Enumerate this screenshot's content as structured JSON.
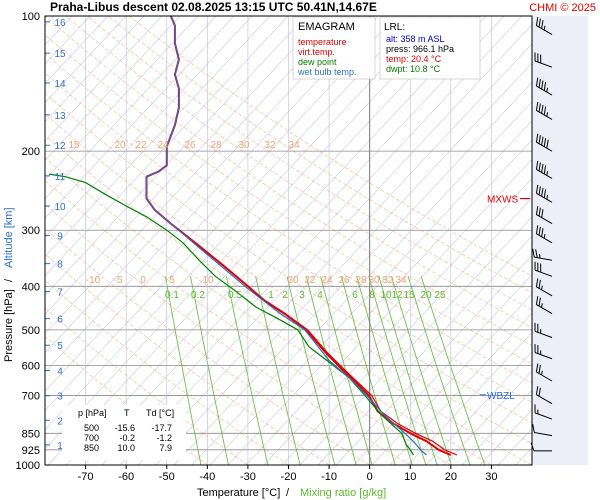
{
  "header": {
    "title": "Praha-Libus   descent   02.08.2025 13:15 UTC  50.41N,14.67E",
    "copyright": "CHMI © 2025"
  },
  "chart_data": {
    "type": "line",
    "chart_kind": "emagram",
    "title": "EMAGRAM",
    "xlabel": "Temperature [°C]",
    "xlabel_sep": "/",
    "xlabel2": "Mixing ratio [g/kg]",
    "ylabel": "Pressure [hPa]",
    "ylabel_sep": "/",
    "ylabel2": "Altitude [km]",
    "x_range": [
      -80,
      40
    ],
    "y_range_hpa": [
      1000,
      100
    ],
    "y_scale": "log",
    "x_ticks": [
      -70,
      -60,
      -50,
      -40,
      -30,
      -20,
      -10,
      0,
      10,
      20,
      30
    ],
    "pressure_ticks": [
      100,
      200,
      300,
      400,
      500,
      600,
      700,
      850,
      925,
      1000
    ],
    "altitude_ticks": [
      {
        "label": "1",
        "p": 902
      },
      {
        "label": "2",
        "p": 795
      },
      {
        "label": "3",
        "p": 701
      },
      {
        "label": "4",
        "p": 616
      },
      {
        "label": "5",
        "p": 541
      },
      {
        "label": "6",
        "p": 472
      },
      {
        "label": "7",
        "p": 411
      },
      {
        "label": "8",
        "p": 356
      },
      {
        "label": "9",
        "p": 308
      },
      {
        "label": "10",
        "p": 265
      },
      {
        "label": "11",
        "p": 227
      },
      {
        "label": "12",
        "p": 194
      },
      {
        "label": "13",
        "p": 166
      },
      {
        "label": "14",
        "p": 141
      },
      {
        "label": "15",
        "p": 121
      },
      {
        "label": "16",
        "p": 103
      }
    ],
    "legend": [
      {
        "label": "temperature",
        "color": "#e00000"
      },
      {
        "label": "virt.temp.",
        "color": "#e00000"
      },
      {
        "label": "dew point",
        "color": "#008000"
      },
      {
        "label": "wet bulb temp.",
        "color": "#2a6fd0"
      }
    ],
    "lrl": {
      "title": "LRL:",
      "lines": [
        {
          "text": "alt: 358 m ASL",
          "color": "#0000c0"
        },
        {
          "text": "press: 966.1 hPa",
          "color": "#000000"
        },
        {
          "text": "temp: 20.4 °C",
          "color": "#e00000"
        },
        {
          "text": "dwpt: 10.8 °C",
          "color": "#008000"
        }
      ]
    },
    "stats_table": {
      "header": [
        "p [hPa]",
        "T",
        "Td [°C]"
      ],
      "rows": [
        [
          "500",
          "-15.6",
          "-17.7"
        ],
        [
          "700",
          "-0.2",
          "-1.2"
        ],
        [
          "850",
          "10.0",
          "7.9"
        ]
      ]
    },
    "mixing_ratio_labels": [
      "0.1",
      "0.2",
      "0.5",
      "1",
      "2",
      "3",
      "4",
      "6",
      "8",
      "10",
      "12",
      "15",
      "20",
      "25"
    ],
    "mixing_ratio_values": [
      0.1,
      0.2,
      0.5,
      1,
      2,
      3,
      4,
      6,
      8,
      10,
      12,
      15,
      20,
      25
    ],
    "theta_labels_low": [
      "-10",
      "-5",
      "0",
      "5",
      "10",
      "20",
      "22",
      "24",
      "26",
      "28",
      "30",
      "32",
      "34"
    ],
    "theta_labels_high": [
      "15",
      "20",
      "22",
      "24",
      "26",
      "28",
      "30",
      "32",
      "34"
    ],
    "levels": [
      {
        "label": "MXWS",
        "p": 255,
        "color": "#e00000"
      },
      {
        "label": "WBZL",
        "p": 705,
        "color": "#2a6fd0"
      }
    ],
    "series": [
      {
        "name": "temperature",
        "color": "#e00000",
        "points": [
          [
            20,
            950
          ],
          [
            17,
            925
          ],
          [
            14,
            885
          ],
          [
            10,
            850
          ],
          [
            6,
            810
          ],
          [
            2,
            760
          ],
          [
            -0.2,
            700
          ],
          [
            -3,
            660
          ],
          [
            -7,
            610
          ],
          [
            -11,
            560
          ],
          [
            -15.6,
            500
          ],
          [
            -21,
            460
          ],
          [
            -26,
            430
          ],
          [
            -30,
            400
          ],
          [
            -36,
            360
          ],
          [
            -43,
            320
          ],
          [
            -49,
            290
          ],
          [
            -53,
            270
          ],
          [
            -55,
            255
          ],
          [
            -55,
            240
          ],
          [
            -55,
            228
          ],
          [
            -52,
            222
          ],
          [
            -50,
            215
          ],
          [
            -50,
            205
          ],
          [
            -50,
            195
          ],
          [
            -49,
            185
          ],
          [
            -48,
            175
          ],
          [
            -47,
            160
          ],
          [
            -47,
            145
          ],
          [
            -48,
            135
          ],
          [
            -47,
            125
          ],
          [
            -48,
            115
          ],
          [
            -48,
            105
          ],
          [
            -49,
            100
          ]
        ]
      },
      {
        "name": "virt.temp.",
        "color": "#e00000",
        "points": [
          [
            21.5,
            950
          ],
          [
            18.5,
            925
          ],
          [
            15.5,
            885
          ],
          [
            11.3,
            850
          ],
          [
            7,
            810
          ],
          [
            2.8,
            760
          ],
          [
            0.5,
            700
          ],
          [
            -2.5,
            660
          ],
          [
            -6.5,
            610
          ],
          [
            -10.6,
            560
          ],
          [
            -15.3,
            500
          ],
          [
            -20.8,
            460
          ],
          [
            -25.8,
            430
          ],
          [
            -29.9,
            400
          ],
          [
            -35.9,
            360
          ],
          [
            -42.9,
            320
          ],
          [
            -49,
            290
          ],
          [
            -53,
            270
          ],
          [
            -55,
            255
          ],
          [
            -55,
            240
          ],
          [
            -55,
            228
          ],
          [
            -52,
            222
          ],
          [
            -50,
            215
          ],
          [
            -50,
            205
          ],
          [
            -50,
            195
          ],
          [
            -49,
            185
          ],
          [
            -48,
            175
          ],
          [
            -47,
            160
          ],
          [
            -47,
            145
          ],
          [
            -48,
            135
          ],
          [
            -47,
            125
          ],
          [
            -48,
            115
          ],
          [
            -48,
            105
          ],
          [
            -49,
            100
          ]
        ]
      },
      {
        "name": "dew point",
        "color": "#008000",
        "points": [
          [
            10.8,
            950
          ],
          [
            10,
            925
          ],
          [
            9,
            900
          ],
          [
            7.9,
            850
          ],
          [
            3,
            775
          ],
          [
            -1.2,
            700
          ],
          [
            -5,
            640
          ],
          [
            -10,
            590
          ],
          [
            -15,
            545
          ],
          [
            -17.7,
            500
          ],
          [
            -23,
            470
          ],
          [
            -28,
            445
          ],
          [
            -33,
            410
          ],
          [
            -38,
            380
          ],
          [
            -42,
            350
          ],
          [
            -46,
            320
          ],
          [
            -50,
            300
          ],
          [
            -55,
            280
          ],
          [
            -60,
            265
          ],
          [
            -65,
            250
          ],
          [
            -70,
            235
          ],
          [
            -75,
            228
          ],
          [
            -79,
            225
          ]
        ]
      },
      {
        "name": "wet bulb temp.",
        "color": "#2a6fd0",
        "points": [
          [
            14,
            950
          ],
          [
            12.5,
            925
          ],
          [
            11,
            890
          ],
          [
            8.7,
            850
          ],
          [
            4,
            780
          ],
          [
            -0.7,
            700
          ],
          [
            -5,
            640
          ],
          [
            -10,
            585
          ],
          [
            -16,
            500
          ],
          [
            -22,
            460
          ],
          [
            -30,
            405
          ],
          [
            -40,
            340
          ],
          [
            -49,
            290
          ],
          [
            -53,
            270
          ],
          [
            -55,
            255
          ],
          [
            -55,
            240
          ],
          [
            -55,
            228
          ],
          [
            -52,
            222
          ],
          [
            -50,
            215
          ],
          [
            -50,
            205
          ],
          [
            -50,
            195
          ],
          [
            -49,
            185
          ],
          [
            -48,
            175
          ],
          [
            -47,
            160
          ],
          [
            -47,
            145
          ],
          [
            -48,
            135
          ],
          [
            -47,
            125
          ],
          [
            -48,
            115
          ],
          [
            -48,
            105
          ],
          [
            -49,
            100
          ]
        ]
      }
    ],
    "winds": [
      {
        "p": 110,
        "dir": 300,
        "kt": 35
      },
      {
        "p": 130,
        "dir": 290,
        "kt": 30
      },
      {
        "p": 150,
        "dir": 300,
        "kt": 45
      },
      {
        "p": 170,
        "dir": 300,
        "kt": 45
      },
      {
        "p": 200,
        "dir": 300,
        "kt": 50
      },
      {
        "p": 230,
        "dir": 300,
        "kt": 45
      },
      {
        "p": 260,
        "dir": 300,
        "kt": 45
      },
      {
        "p": 290,
        "dir": 300,
        "kt": 30
      },
      {
        "p": 320,
        "dir": 300,
        "kt": 35
      },
      {
        "p": 350,
        "dir": 280,
        "kt": 25
      },
      {
        "p": 380,
        "dir": 290,
        "kt": 30
      },
      {
        "p": 420,
        "dir": 300,
        "kt": 25
      },
      {
        "p": 460,
        "dir": 300,
        "kt": 25
      },
      {
        "p": 520,
        "dir": 290,
        "kt": 25
      },
      {
        "p": 580,
        "dir": 290,
        "kt": 25
      },
      {
        "p": 650,
        "dir": 300,
        "kt": 25
      },
      {
        "p": 730,
        "dir": 300,
        "kt": 20
      },
      {
        "p": 790,
        "dir": 290,
        "kt": 15
      },
      {
        "p": 860,
        "dir": 280,
        "kt": 10
      },
      {
        "p": 930,
        "dir": 270,
        "kt": 10
      }
    ]
  }
}
